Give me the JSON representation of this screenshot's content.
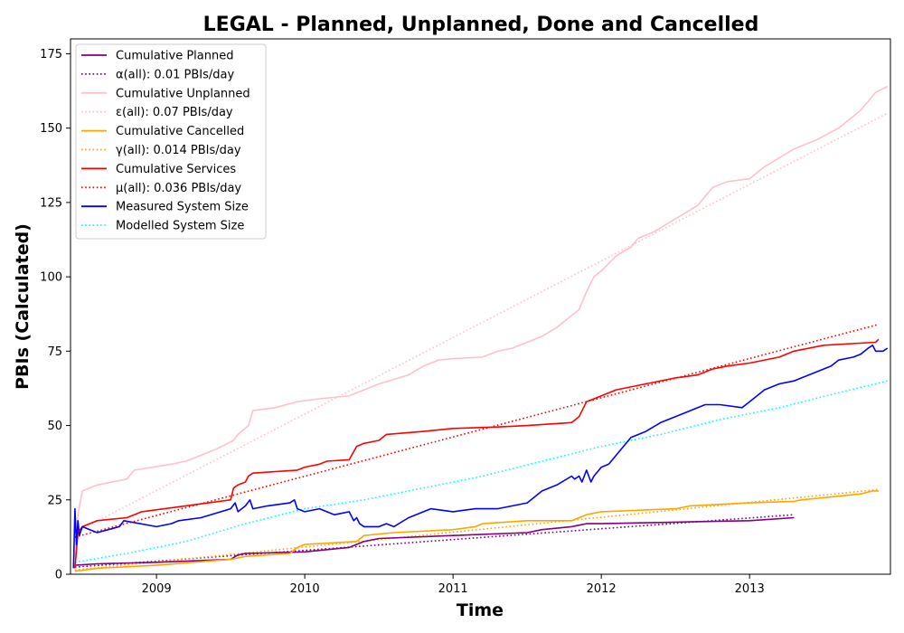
{
  "chart_data": {
    "type": "line",
    "title": "LEGAL - Planned, Unplanned, Done  and Cancelled",
    "xlabel": "Time",
    "ylabel": "PBIs (Calculated)",
    "xlim": [
      2008.42,
      2013.95
    ],
    "ylim": [
      0,
      180
    ],
    "x_ticks": [
      2009,
      2010,
      2011,
      2012,
      2013
    ],
    "x_tick_labels": [
      "2009",
      "2010",
      "2011",
      "2012",
      "2013"
    ],
    "y_ticks": [
      0,
      25,
      50,
      75,
      100,
      125,
      150,
      175
    ],
    "y_tick_labels": [
      "0",
      "25",
      "50",
      "75",
      "100",
      "125",
      "150",
      "175"
    ],
    "grid": false,
    "legend_position": "top-left",
    "series": [
      {
        "name": "Cumulative Planned",
        "color": "#800080",
        "style": "solid",
        "x": [
          2008.45,
          2008.6,
          2009.0,
          2009.5,
          2009.55,
          2009.6,
          2010.0,
          2010.3,
          2010.4,
          2010.5,
          2011.0,
          2011.5,
          2011.6,
          2011.8,
          2011.9,
          2012.0,
          2012.5,
          2013.0,
          2013.3
        ],
        "y": [
          3,
          3.5,
          4,
          5,
          6.5,
          7,
          7.5,
          9,
          11,
          12,
          13,
          14,
          15,
          16,
          17,
          17,
          17.5,
          18,
          19
        ]
      },
      {
        "name": "α(all): 0.01 PBIs/day",
        "color": "#800080",
        "style": "dotted",
        "x": [
          2008.45,
          2013.3
        ],
        "y": [
          2.4,
          20
        ]
      },
      {
        "name": "Cumulative Unplanned",
        "color": "#ffc0cb",
        "style": "solid",
        "x": [
          2008.45,
          2008.47,
          2008.5,
          2008.6,
          2008.8,
          2008.85,
          2009.1,
          2009.2,
          2009.4,
          2009.52,
          2009.55,
          2009.62,
          2009.65,
          2009.8,
          2009.95,
          2010.1,
          2010.3,
          2010.4,
          2010.5,
          2010.7,
          2010.8,
          2010.9,
          2011.0,
          2011.2,
          2011.3,
          2011.4,
          2011.5,
          2011.6,
          2011.7,
          2011.8,
          2011.85,
          2011.9,
          2011.95,
          2012.0,
          2012.1,
          2012.2,
          2012.25,
          2012.35,
          2012.45,
          2012.55,
          2012.65,
          2012.7,
          2012.75,
          2012.85,
          2013.0,
          2013.05,
          2013.1,
          2013.2,
          2013.3,
          2013.45,
          2013.6,
          2013.75,
          2013.85,
          2013.93
        ],
        "y": [
          5,
          20,
          28,
          30,
          32,
          35,
          37,
          38,
          42,
          45,
          47,
          50,
          55,
          56,
          58,
          59,
          60,
          62,
          64,
          67,
          70,
          72,
          72.5,
          73,
          75,
          76,
          78,
          80,
          83,
          87,
          89,
          95,
          100,
          102,
          107,
          110,
          113,
          115,
          118,
          121,
          124,
          127,
          130,
          132,
          133,
          135,
          137,
          140,
          143,
          146,
          150,
          156,
          162,
          164
        ]
      },
      {
        "name": "ε(all): 0.07 PBIs/day",
        "color": "#ffc0cb",
        "style": "dotted",
        "x": [
          2008.45,
          2013.93
        ],
        "y": [
          14,
          155
        ]
      },
      {
        "name": "Cumulative Cancelled",
        "color": "#ffa500",
        "style": "solid",
        "x": [
          2008.45,
          2008.6,
          2009.0,
          2009.5,
          2009.6,
          2009.9,
          2009.95,
          2010.0,
          2010.35,
          2010.4,
          2010.6,
          2011.0,
          2011.15,
          2011.2,
          2011.5,
          2011.8,
          2011.85,
          2011.9,
          2012.0,
          2012.5,
          2012.55,
          2012.6,
          2013.0,
          2013.3,
          2013.35,
          2013.75,
          2013.83,
          2013.87
        ],
        "y": [
          1,
          2,
          3,
          5,
          6,
          7,
          9,
          10,
          11,
          13,
          14,
          15,
          16,
          17,
          18,
          18,
          19,
          20,
          21,
          22,
          22.5,
          23,
          24,
          24.5,
          25,
          27,
          28,
          28
        ]
      },
      {
        "name": "γ(all): 0.014 PBIs/day",
        "color": "#ffa500",
        "style": "dotted",
        "x": [
          2008.45,
          2013.87
        ],
        "y": [
          1.4,
          28.5
        ]
      },
      {
        "name": "Cumulative Services",
        "color": "#ff0000",
        "style": "solid",
        "x": [
          2008.45,
          2008.47,
          2008.5,
          2008.55,
          2008.6,
          2008.8,
          2008.85,
          2008.9,
          2009.5,
          2009.52,
          2009.55,
          2009.6,
          2009.62,
          2009.65,
          2009.95,
          2010.0,
          2010.1,
          2010.15,
          2010.3,
          2010.35,
          2010.4,
          2010.5,
          2010.55,
          2010.8,
          2011.0,
          2011.3,
          2011.5,
          2011.8,
          2011.85,
          2011.9,
          2011.95,
          2012.0,
          2012.1,
          2012.3,
          2012.5,
          2012.65,
          2012.75,
          2012.85,
          2013.0,
          2013.2,
          2013.3,
          2013.5,
          2013.85,
          2013.87
        ],
        "y": [
          2,
          14,
          16,
          17,
          18,
          19,
          20,
          21,
          25,
          29,
          30,
          31,
          33,
          34,
          35,
          36,
          37,
          38,
          38.5,
          43,
          44,
          45,
          47,
          48,
          49,
          49.5,
          50,
          51,
          53,
          58,
          59,
          60,
          62,
          64,
          66,
          67,
          69,
          70,
          71,
          73,
          75,
          77,
          78,
          79
        ]
      },
      {
        "name": "μ(all): 0.036 PBIs/day",
        "color": "#ff0000",
        "style": "dotted",
        "x": [
          2008.45,
          2013.87
        ],
        "y": [
          12.5,
          84
        ]
      },
      {
        "name": "Measured System Size",
        "color": "#0000ff",
        "style": "solid",
        "x": [
          2008.44,
          2008.45,
          2008.46,
          2008.47,
          2008.48,
          2008.5,
          2008.55,
          2008.6,
          2008.75,
          2008.78,
          2009.0,
          2009.1,
          2009.15,
          2009.3,
          2009.5,
          2009.53,
          2009.55,
          2009.6,
          2009.63,
          2009.65,
          2009.75,
          2009.9,
          2009.93,
          2009.95,
          2010.0,
          2010.1,
          2010.2,
          2010.3,
          2010.33,
          2010.35,
          2010.37,
          2010.4,
          2010.5,
          2010.55,
          2010.6,
          2010.7,
          2010.85,
          2011.0,
          2011.15,
          2011.3,
          2011.5,
          2011.6,
          2011.7,
          2011.8,
          2011.82,
          2011.85,
          2011.87,
          2011.9,
          2011.93,
          2011.95,
          2012.0,
          2012.05,
          2012.1,
          2012.2,
          2012.3,
          2012.4,
          2012.5,
          2012.6,
          2012.7,
          2012.8,
          2012.95,
          2013.0,
          2013.05,
          2013.1,
          2013.2,
          2013.3,
          2013.4,
          2013.55,
          2013.6,
          2013.7,
          2013.75,
          2013.8,
          2013.83,
          2013.85,
          2013.9,
          2013.93
        ],
        "y": [
          2,
          22,
          10,
          18,
          13,
          16,
          15,
          14,
          16,
          18,
          16,
          17,
          18,
          19,
          22,
          24,
          21,
          23,
          25,
          22,
          23,
          24,
          25,
          22,
          21,
          22,
          20,
          21,
          18,
          19,
          17,
          16,
          16,
          17,
          16,
          19,
          22,
          21,
          22,
          22,
          24,
          28,
          30,
          33,
          32,
          33,
          31,
          35,
          31,
          33,
          36,
          37,
          40,
          46,
          48,
          51,
          53,
          55,
          57,
          57,
          56,
          58,
          60,
          62,
          64,
          65,
          67,
          70,
          72,
          73,
          74,
          76,
          77,
          75,
          75,
          76
        ]
      },
      {
        "name": "Modelled System Size",
        "color": "#00ffff",
        "style": "dotted",
        "x": [
          2008.45,
          2008.8,
          2009.2,
          2009.6,
          2010.0,
          2010.4,
          2010.8,
          2011.2,
          2011.6,
          2012.0,
          2012.4,
          2012.8,
          2013.2,
          2013.6,
          2013.93
        ],
        "y": [
          4,
          7,
          11,
          17,
          22,
          25,
          29,
          33,
          38,
          43,
          47,
          52,
          56,
          61,
          65
        ]
      }
    ]
  }
}
